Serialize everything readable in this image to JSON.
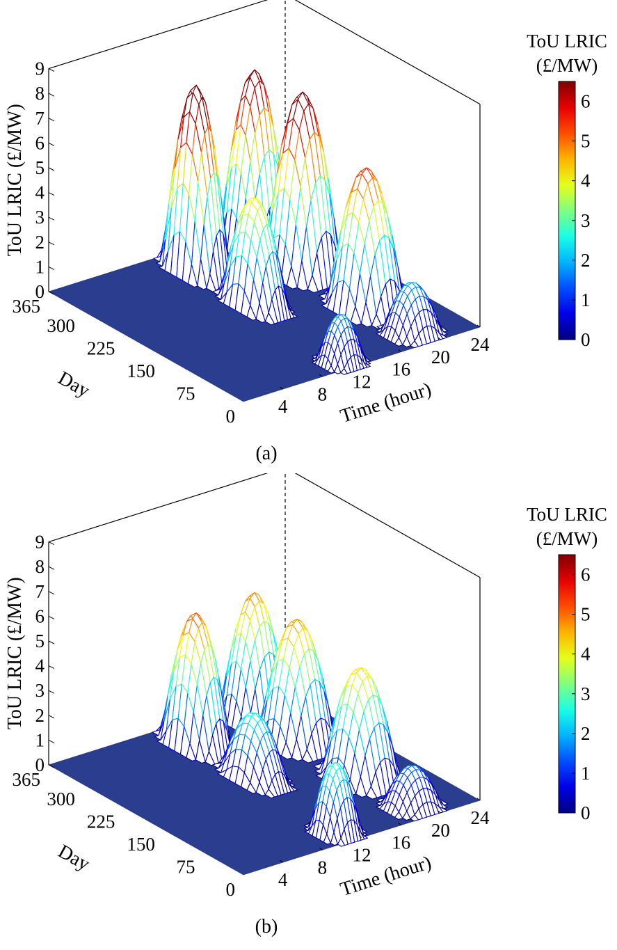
{
  "chart_data": [
    {
      "type": "surface",
      "panel_label": "(a)",
      "zlabel": "ToU LRIC (£/MW)",
      "xlabel": "Time (hour)",
      "ylabel": "Day",
      "x_ticks": [
        "4",
        "8",
        "12",
        "16",
        "20",
        "24"
      ],
      "y_ticks": [
        "0",
        "75",
        "150",
        "225",
        "300",
        "365"
      ],
      "z_ticks": [
        "0",
        "1",
        "2",
        "3",
        "4",
        "5",
        "6",
        "7",
        "8",
        "9"
      ],
      "xlim": [
        0,
        24
      ],
      "ylim": [
        0,
        365
      ],
      "zlim": [
        0,
        9
      ],
      "colorbar": {
        "title_line1": "ToU LRIC",
        "title_line2": "(£/MW)",
        "ticks": [
          "0",
          "1",
          "2",
          "3",
          "4",
          "5",
          "6"
        ],
        "range": [
          0,
          6.5
        ]
      },
      "peaks": [
        {
          "hour": 11,
          "day": 20,
          "height": 1.9,
          "width_h": 2.0,
          "width_d": 30
        },
        {
          "hour": 12,
          "day": 200,
          "height": 4.3,
          "width_h": 2.0,
          "width_d": 55
        },
        {
          "hour": 12,
          "day": 310,
          "height": 7.5,
          "width_h": 2.0,
          "width_d": 55
        },
        {
          "hour": 19,
          "day": 35,
          "height": 2.0,
          "width_h": 2.5,
          "width_d": 35
        },
        {
          "hour": 19,
          "day": 120,
          "height": 5.6,
          "width_h": 2.8,
          "width_d": 55
        },
        {
          "hour": 19,
          "day": 240,
          "height": 7.2,
          "width_h": 2.8,
          "width_d": 55
        },
        {
          "hour": 19,
          "day": 330,
          "height": 7.0,
          "width_h": 2.8,
          "width_d": 45
        }
      ]
    },
    {
      "type": "surface",
      "panel_label": "(b)",
      "zlabel": "ToU LRIC (£/MW)",
      "xlabel": "Time (hour)",
      "ylabel": "Day",
      "x_ticks": [
        "4",
        "8",
        "12",
        "16",
        "20",
        "24"
      ],
      "y_ticks": [
        "0",
        "75",
        "150",
        "225",
        "300",
        "365"
      ],
      "z_ticks": [
        "0",
        "1",
        "2",
        "3",
        "4",
        "5",
        "6",
        "7",
        "8",
        "9"
      ],
      "xlim": [
        0,
        24
      ],
      "ylim": [
        0,
        365
      ],
      "zlim": [
        0,
        9
      ],
      "colorbar": {
        "title_line1": "ToU LRIC",
        "title_line2": "(£/MW)",
        "ticks": [
          "0",
          "1",
          "2",
          "3",
          "4",
          "5",
          "6"
        ],
        "range": [
          0,
          6.5
        ]
      },
      "peaks": [
        {
          "hour": 11,
          "day": 30,
          "height": 2.8,
          "width_h": 2.0,
          "width_d": 35
        },
        {
          "hour": 12,
          "day": 200,
          "height": 2.6,
          "width_h": 2.0,
          "width_d": 55
        },
        {
          "hour": 12,
          "day": 310,
          "height": 5.3,
          "width_h": 2.2,
          "width_d": 55
        },
        {
          "hour": 19,
          "day": 35,
          "height": 1.6,
          "width_h": 2.5,
          "width_d": 35
        },
        {
          "hour": 19,
          "day": 130,
          "height": 4.4,
          "width_h": 2.8,
          "width_d": 55
        },
        {
          "hour": 19,
          "day": 250,
          "height": 4.9,
          "width_h": 2.8,
          "width_d": 55
        },
        {
          "hour": 19,
          "day": 330,
          "height": 5.0,
          "width_h": 2.8,
          "width_d": 45
        }
      ]
    }
  ]
}
